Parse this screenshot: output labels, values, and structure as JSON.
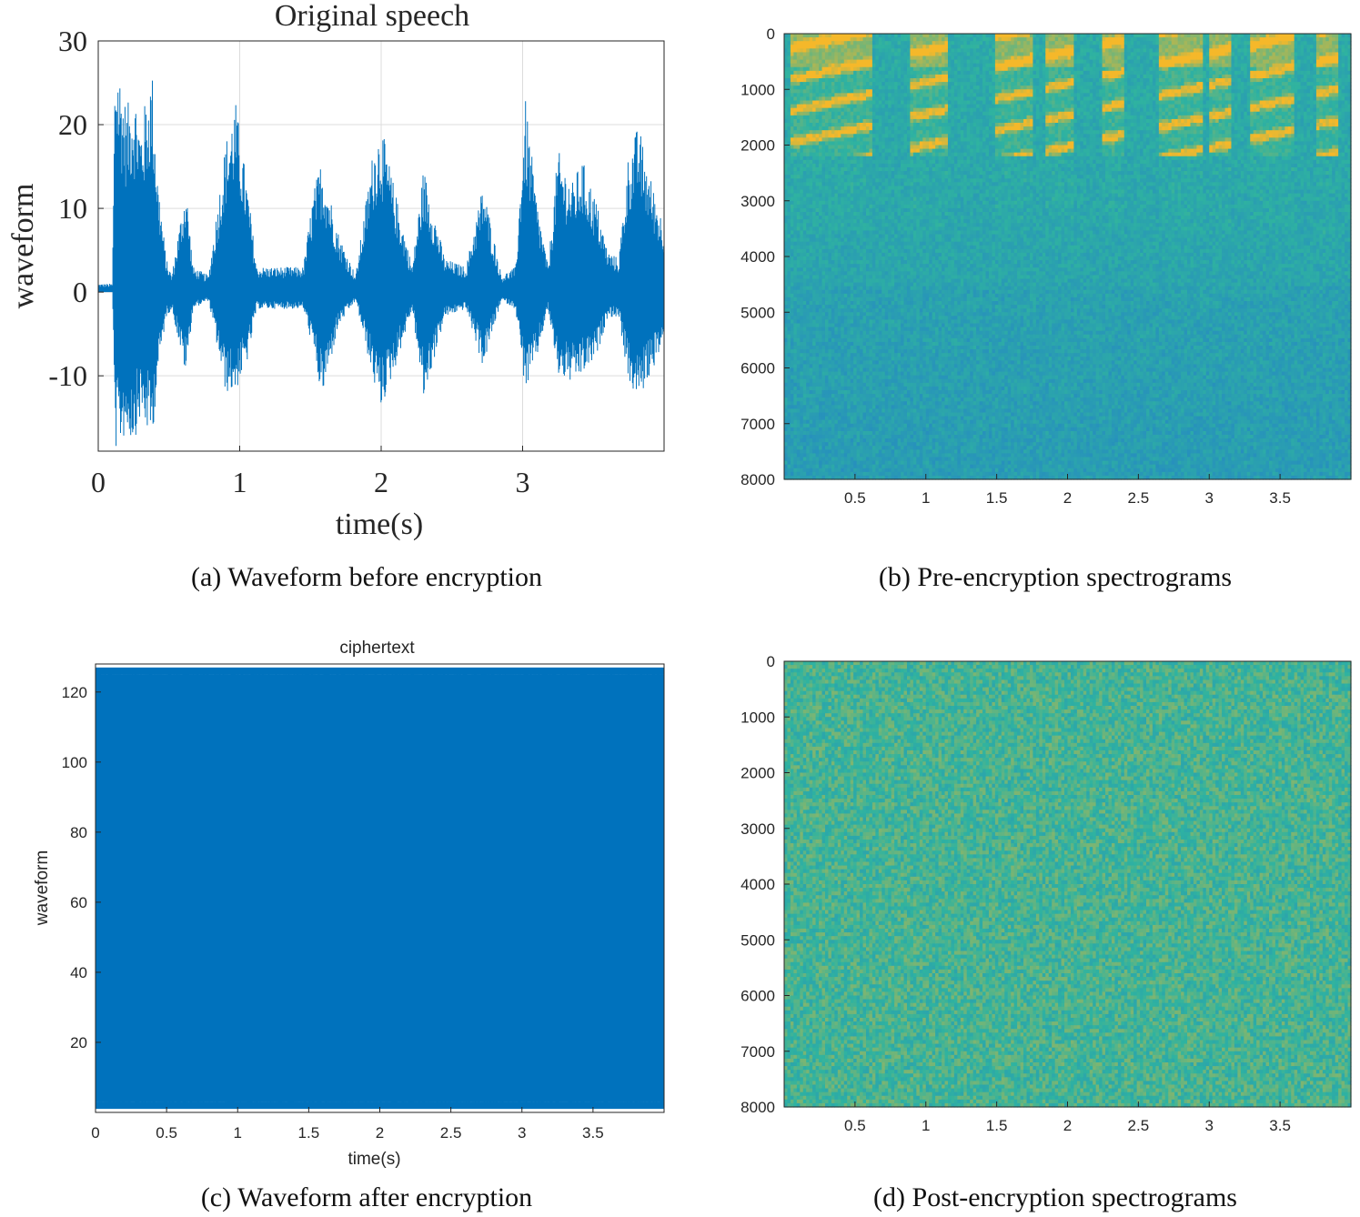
{
  "captions": {
    "a": "(a) Waveform before encryption",
    "b": "(b) Pre-encryption spectrograms",
    "c": "(c) Waveform after encryption",
    "d": "(d) Post-encryption spectrograms"
  },
  "colors": {
    "line": "#0072BD",
    "axes": "#262626",
    "grid": "#dcdcdc",
    "spec_low": "#1f6fd8",
    "spec_mid": "#2fb3a0",
    "spec_high": "#f5b82a"
  },
  "chart_data": [
    {
      "id": "a",
      "type": "line",
      "title": "Original speech",
      "xlabel": "time(s)",
      "ylabel": "waveform",
      "xlim": [
        0,
        4
      ],
      "ylim": [
        -19,
        30
      ],
      "xticks": [
        "0",
        "1",
        "2",
        "3"
      ],
      "yticks": [
        "30",
        "20",
        "10",
        "0",
        "-10"
      ],
      "grid": true,
      "series": [
        {
          "x": [
            0.0,
            0.1,
            0.12,
            0.2,
            0.25,
            0.3,
            0.38,
            0.42,
            0.48,
            0.52,
            0.62,
            0.67,
            0.78,
            0.9,
            0.97,
            1.06,
            1.12,
            1.3,
            1.45,
            1.52,
            1.58,
            1.7,
            1.82,
            1.95,
            2.0,
            2.1,
            2.22,
            2.3,
            2.45,
            2.6,
            2.72,
            2.85,
            2.95,
            3.02,
            3.1,
            3.18,
            3.25,
            3.35,
            3.42,
            3.52,
            3.6,
            3.68,
            3.75,
            3.82,
            3.9,
            4.0
          ],
          "upper": [
            1,
            1,
            30,
            22,
            25,
            20,
            27,
            14,
            4,
            2,
            13,
            3,
            2,
            18,
            23,
            12,
            3,
            3,
            3,
            12,
            16,
            7,
            2,
            18,
            20,
            12,
            3,
            15,
            4,
            3,
            13,
            2,
            3,
            23,
            11,
            3,
            17,
            13,
            16,
            11,
            5,
            4,
            17,
            20,
            14,
            8
          ],
          "lower": [
            0,
            0,
            -19,
            -17,
            -18,
            -15,
            -18,
            -10,
            -3,
            -2,
            -10,
            -2,
            -1,
            -12,
            -12,
            -8,
            -2,
            -2,
            -2,
            -7,
            -13,
            -4,
            -1,
            -11,
            -14,
            -9,
            -2,
            -13,
            -3,
            -2,
            -9,
            -1,
            -2,
            -12,
            -8,
            -2,
            -10,
            -11,
            -10,
            -8,
            -3,
            -3,
            -11,
            -13,
            -10,
            -6
          ]
        }
      ]
    },
    {
      "id": "b",
      "type": "heatmap",
      "title": "",
      "xlabel": "",
      "ylabel": "",
      "xlim": [
        0,
        4
      ],
      "ylim": [
        0,
        8000
      ],
      "xticks": [
        "0.5",
        "1",
        "1.5",
        "2",
        "2.5",
        "3",
        "3.5"
      ],
      "yticks": [
        "0",
        "1000",
        "2000",
        "3000",
        "4000",
        "5000",
        "6000",
        "7000",
        "8000"
      ],
      "colormap": "parula",
      "description": "speech energy concentrated below ~2000 Hz with bright harmonic bands"
    },
    {
      "id": "c",
      "type": "line",
      "title": "ciphertext",
      "xlabel": "time(s)",
      "ylabel": "waveform",
      "xlim": [
        0,
        4
      ],
      "ylim": [
        0,
        128
      ],
      "xticks": [
        "0",
        "0.5",
        "1",
        "1.5",
        "2",
        "2.5",
        "3",
        "3.5"
      ],
      "yticks": [
        "120",
        "100",
        "80",
        "60",
        "40",
        "20"
      ],
      "grid": false,
      "series": [
        {
          "x": [
            0,
            4
          ],
          "upper": [
            127,
            127
          ],
          "lower": [
            1,
            1
          ]
        }
      ]
    },
    {
      "id": "d",
      "type": "heatmap",
      "title": "",
      "xlabel": "",
      "ylabel": "",
      "xlim": [
        0,
        4
      ],
      "ylim": [
        0,
        8000
      ],
      "xticks": [
        "0.5",
        "1",
        "1.5",
        "2",
        "2.5",
        "3",
        "3.5"
      ],
      "yticks": [
        "0",
        "1000",
        "2000",
        "3000",
        "4000",
        "5000",
        "6000",
        "7000",
        "8000"
      ],
      "colormap": "parula",
      "description": "uniform noise-like energy across all frequencies"
    }
  ]
}
